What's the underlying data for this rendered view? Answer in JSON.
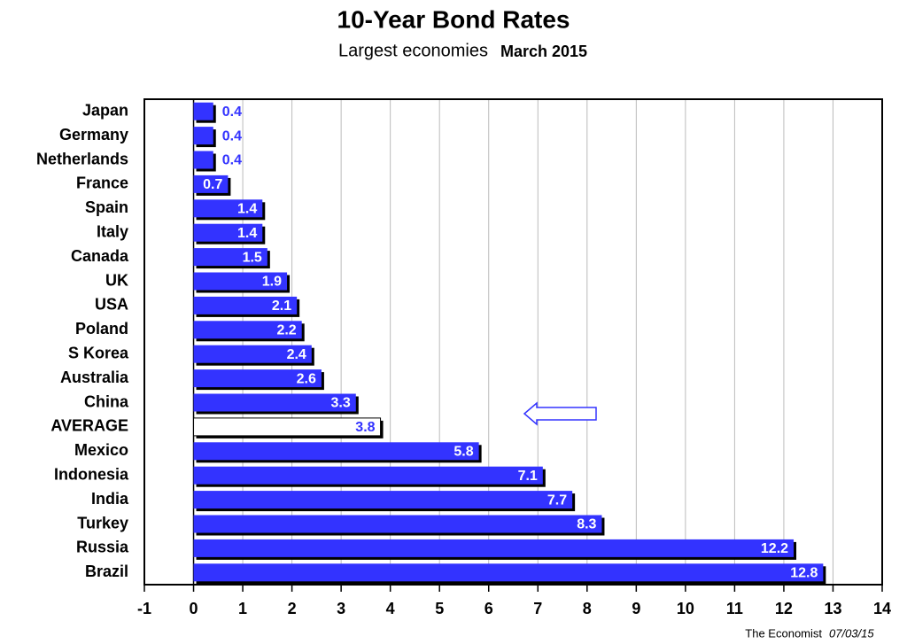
{
  "chart_data": {
    "type": "barh",
    "title": "10-Year Bond Rates",
    "subtitle": "Largest economies",
    "subtitle_date": "March 2015",
    "source": "The Economist",
    "source_date": "07/03/15",
    "categories": [
      "Japan",
      "Germany",
      "Netherlands",
      "France",
      "Spain",
      "Italy",
      "Canada",
      "UK",
      "USA",
      "Poland",
      "S Korea",
      "Australia",
      "China",
      "AVERAGE",
      "Mexico",
      "Indonesia",
      "India",
      "Turkey",
      "Russia",
      "Brazil"
    ],
    "values": [
      0.4,
      0.4,
      0.4,
      0.7,
      1.4,
      1.4,
      1.5,
      1.9,
      2.1,
      2.2,
      2.4,
      2.6,
      3.3,
      3.8,
      5.8,
      7.1,
      7.7,
      8.3,
      12.2,
      12.8
    ],
    "colors": [
      "#3333ff",
      "#3333ff",
      "#3333ff",
      "#3333ff",
      "#3333ff",
      "#3333ff",
      "#3333ff",
      "#3333ff",
      "#3333ff",
      "#3333ff",
      "#3333ff",
      "#3333ff",
      "#3333ff",
      "#ffffff",
      "#3333ff",
      "#3333ff",
      "#3333ff",
      "#3333ff",
      "#3333ff",
      "#3333ff"
    ],
    "xlim": [
      -1,
      14
    ],
    "xticks": [
      -1,
      0,
      1,
      2,
      3,
      4,
      5,
      6,
      7,
      8,
      9,
      10,
      11,
      12,
      13,
      14
    ],
    "grid": true
  }
}
